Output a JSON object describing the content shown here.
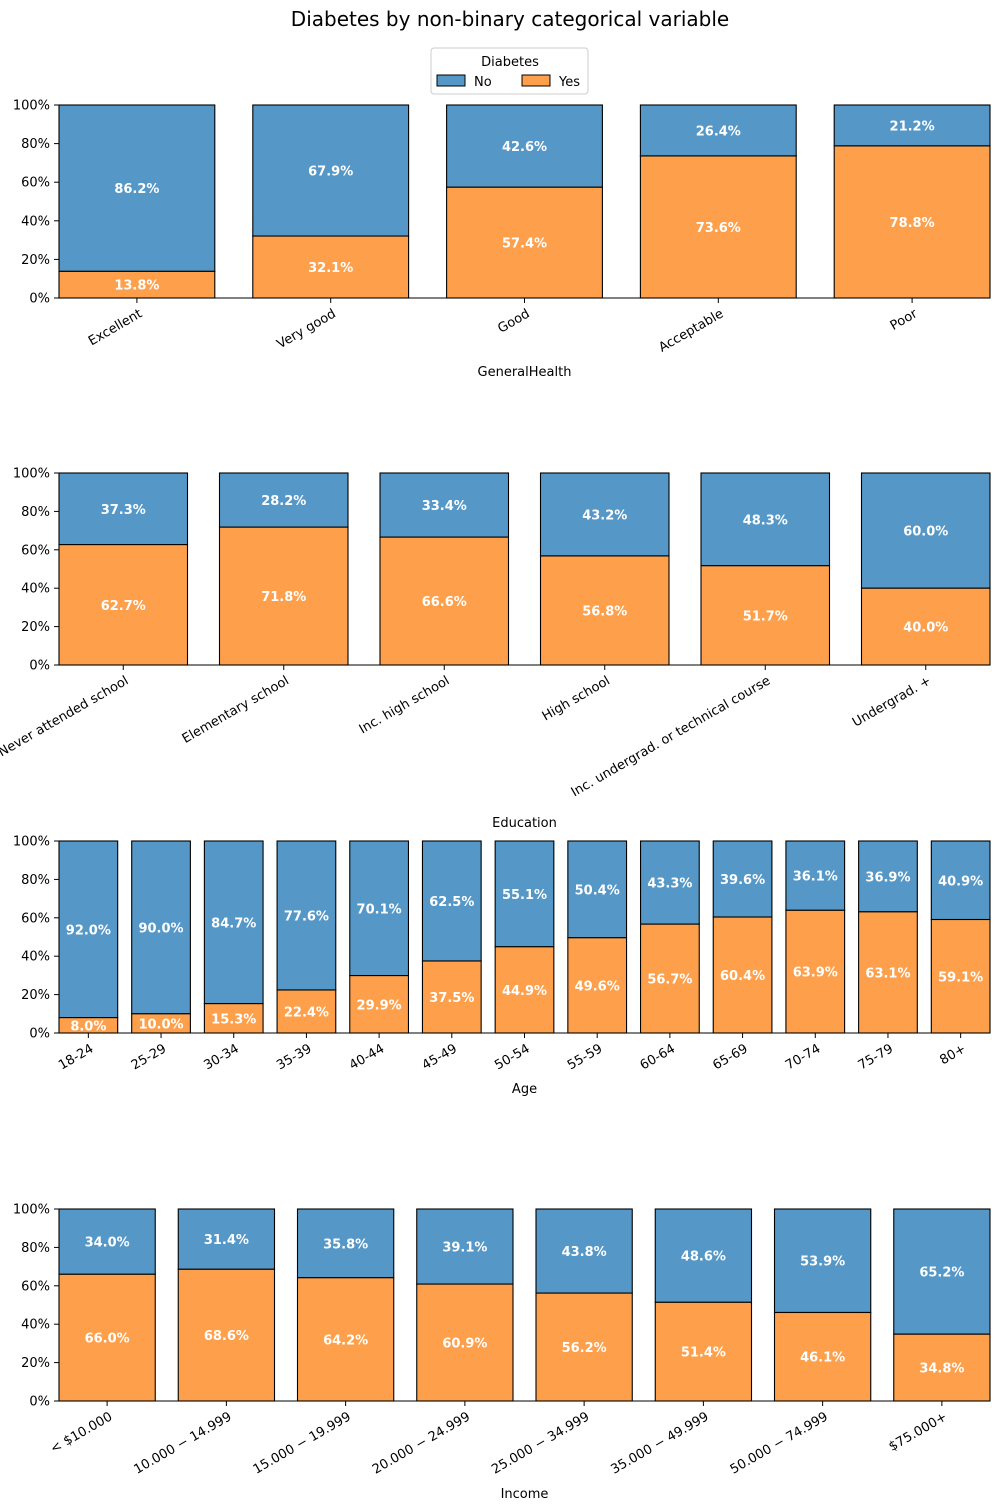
{
  "title": "Diabetes by non-binary categorical variable",
  "legend": {
    "title": "Diabetes",
    "placement": "top-center",
    "entries": [
      {
        "label": "No",
        "color": "#5597c6"
      },
      {
        "label": "Yes",
        "color": "#fea04b"
      }
    ]
  },
  "y_tick_labels": [
    "0%",
    "20%",
    "40%",
    "60%",
    "80%",
    "100%"
  ],
  "chart_data": [
    {
      "type": "bar",
      "stacked": true,
      "xlabel": "GeneralHealth",
      "ylim": [
        0,
        100
      ],
      "categories": [
        "Excellent",
        "Very good",
        "Good",
        "Acceptable",
        "Poor"
      ],
      "series": [
        {
          "name": "No",
          "values": [
            86.2,
            67.9,
            42.6,
            26.4,
            21.2
          ],
          "labels": [
            "86.2%",
            "67.9%",
            "42.6%",
            "26.4%",
            "21.2%"
          ]
        },
        {
          "name": "Yes",
          "values": [
            13.8,
            32.1,
            57.4,
            73.6,
            78.8
          ],
          "labels": [
            "13.8%",
            "32.1%",
            "57.4%",
            "73.6%",
            "78.8%"
          ]
        }
      ]
    },
    {
      "type": "bar",
      "stacked": true,
      "xlabel": "Education",
      "ylim": [
        0,
        100
      ],
      "categories": [
        "Never attended school",
        "Elementary school",
        "Inc. high school",
        "High school",
        "Inc. undergrad. or technical course",
        "Undergrad. +"
      ],
      "series": [
        {
          "name": "No",
          "values": [
            37.3,
            28.2,
            33.4,
            43.2,
            48.3,
            60.0
          ],
          "labels": [
            "37.3%",
            "28.2%",
            "33.4%",
            "43.2%",
            "48.3%",
            "60.0%"
          ]
        },
        {
          "name": "Yes",
          "values": [
            62.7,
            71.8,
            66.6,
            56.8,
            51.7,
            40.0
          ],
          "labels": [
            "62.7%",
            "71.8%",
            "66.6%",
            "56.8%",
            "51.7%",
            "40.0%"
          ]
        }
      ]
    },
    {
      "type": "bar",
      "stacked": true,
      "xlabel": "Age",
      "ylim": [
        0,
        100
      ],
      "categories": [
        "18-24",
        "25-29",
        "30-34",
        "35-39",
        "40-44",
        "45-49",
        "50-54",
        "55-59",
        "60-64",
        "65-69",
        "70-74",
        "75-79",
        "80+"
      ],
      "series": [
        {
          "name": "No",
          "values": [
            92.0,
            90.0,
            84.7,
            77.6,
            70.1,
            62.5,
            55.1,
            50.4,
            43.3,
            39.6,
            36.1,
            36.9,
            40.9
          ],
          "labels": [
            "92.0%",
            "90.0%",
            "84.7%",
            "77.6%",
            "70.1%",
            "62.5%",
            "55.1%",
            "50.4%",
            "43.3%",
            "39.6%",
            "36.1%",
            "36.9%",
            "40.9%"
          ]
        },
        {
          "name": "Yes",
          "values": [
            8.0,
            10.0,
            15.3,
            22.4,
            29.9,
            37.5,
            44.9,
            49.6,
            56.7,
            60.4,
            63.9,
            63.1,
            59.1
          ],
          "labels": [
            "8.0%",
            "10.0%",
            "15.3%",
            "22.4%",
            "29.9%",
            "37.5%",
            "44.9%",
            "49.6%",
            "56.7%",
            "60.4%",
            "63.9%",
            "63.1%",
            "59.1%"
          ]
        }
      ]
    },
    {
      "type": "bar",
      "stacked": true,
      "xlabel": "Income",
      "ylim": [
        0,
        100
      ],
      "categories": [
        "< $10.000",
        "10.000 − 14.999",
        "15.000 − 19.999",
        "20.000 − 24.999",
        "25.000 − 34.999",
        "35.000 − 49.999",
        "50.000 − 74.999",
        "$75.000+"
      ],
      "series": [
        {
          "name": "No",
          "values": [
            34.0,
            31.4,
            35.8,
            39.1,
            43.8,
            48.6,
            53.9,
            65.2
          ],
          "labels": [
            "34.0%",
            "31.4%",
            "35.8%",
            "39.1%",
            "43.8%",
            "48.6%",
            "53.9%",
            "65.2%"
          ]
        },
        {
          "name": "Yes",
          "values": [
            66.0,
            68.6,
            64.2,
            60.9,
            56.2,
            51.4,
            46.1,
            34.8
          ],
          "labels": [
            "66.0%",
            "68.6%",
            "64.2%",
            "60.9%",
            "56.2%",
            "51.4%",
            "46.1%",
            "34.8%"
          ]
        }
      ]
    }
  ]
}
